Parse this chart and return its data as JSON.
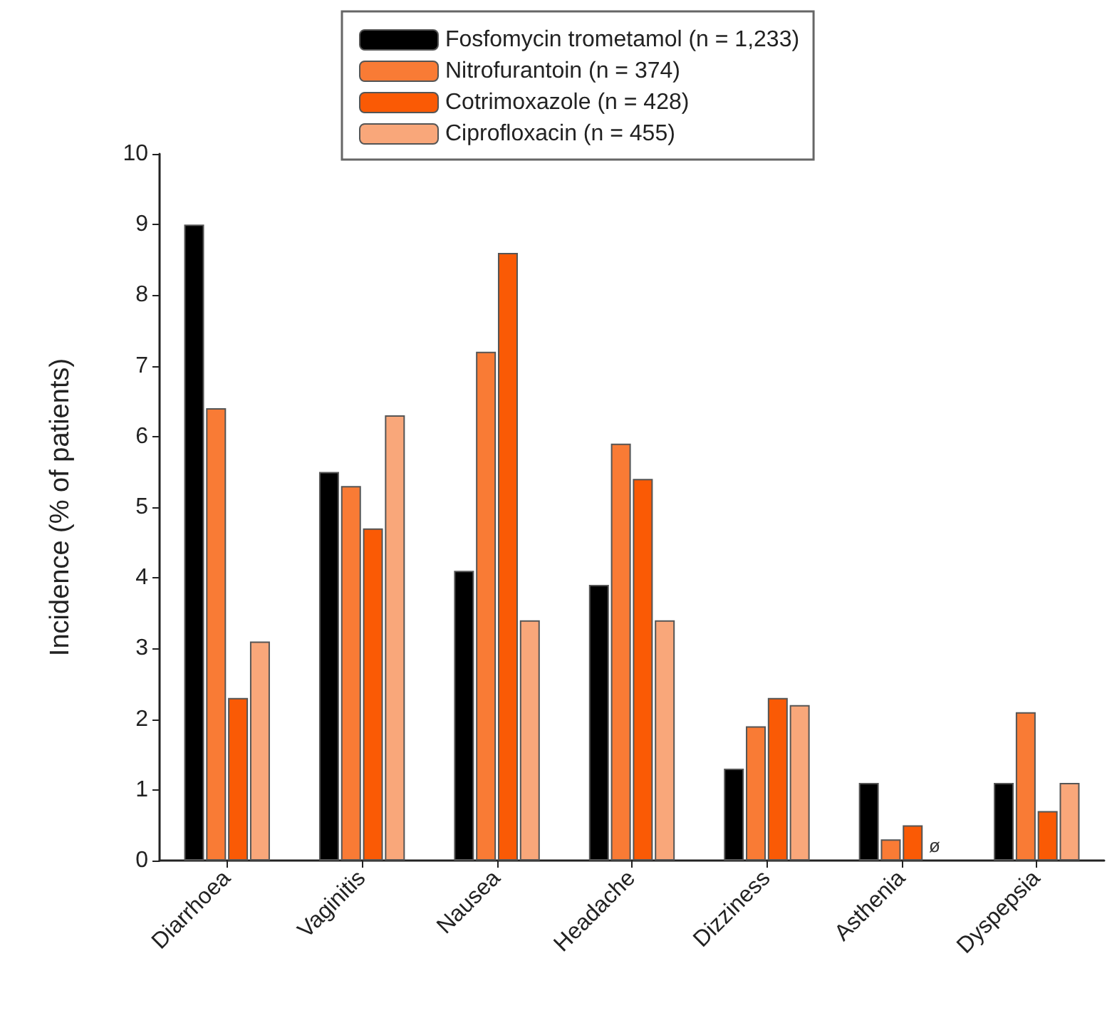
{
  "chart_data": {
    "type": "bar",
    "ylabel": "Incidence (% of patients)",
    "categories": [
      "Diarrhoea",
      "Vaginitis",
      "Nausea",
      "Headache",
      "Dizziness",
      "Asthenia",
      "Dyspepsia"
    ],
    "series": [
      {
        "name": "Fosfomycin trometamol (n = 1,233)",
        "color": "#000000",
        "values": [
          9,
          5.5,
          4.1,
          3.9,
          1.3,
          1.1,
          1.1
        ]
      },
      {
        "name": "Nitrofurantoin (n = 374)",
        "color": "#f97b35",
        "values": [
          6.4,
          5.3,
          7.2,
          5.9,
          1.9,
          0.3,
          2.1
        ]
      },
      {
        "name": "Cotrimoxazole (n = 428)",
        "color": "#fa5a05",
        "values": [
          2.3,
          4.7,
          8.6,
          5.4,
          2.3,
          0.5,
          0.7
        ]
      },
      {
        "name": "Ciprofloxacin (n = 455)",
        "color": "#f9a77a",
        "values": [
          3.1,
          6.3,
          3.4,
          3.4,
          2.2,
          null,
          1.1
        ]
      }
    ],
    "annotations": [
      "ø"
    ],
    "ylim": [
      0,
      10
    ],
    "yticks": [
      0,
      1,
      2,
      3,
      4,
      5,
      6,
      7,
      8,
      9,
      10
    ],
    "grid": false,
    "legend": "top"
  }
}
